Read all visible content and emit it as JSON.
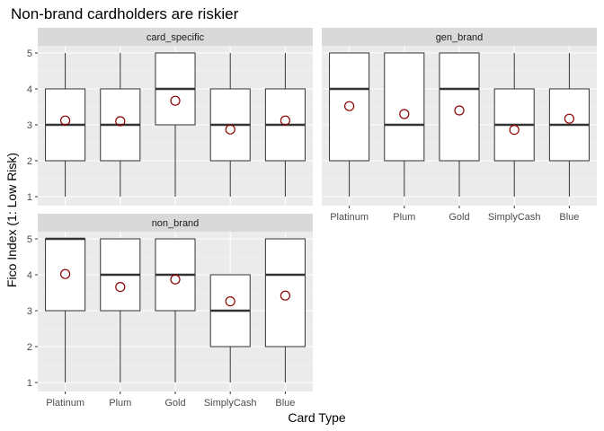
{
  "chart_data": {
    "type": "boxplot",
    "title": "Non-brand cardholders are riskier",
    "xlabel": "Card Type",
    "ylabel": "Fico Index (1: Low Risk)",
    "categories": [
      "Platinum",
      "Plum",
      "Gold",
      "SimplyCash",
      "Blue"
    ],
    "ylim": [
      0.75,
      5.2
    ],
    "yticks": [
      1,
      2,
      3,
      4,
      5
    ],
    "grid": true,
    "colors": {
      "panel_bg": "#ebebeb",
      "strip_bg": "#d9d9d9",
      "grid": "#ffffff",
      "box_fill": "#ffffff",
      "box_line": "#333333",
      "mean_marker": "#8b0000"
    },
    "panels": [
      {
        "strip": "card_specific",
        "boxes": [
          {
            "category": "Platinum",
            "min": 1,
            "q1": 2,
            "median": 3,
            "q3": 4,
            "max": 5,
            "mean": 3.12
          },
          {
            "category": "Plum",
            "min": 1,
            "q1": 2,
            "median": 3,
            "q3": 4,
            "max": 5,
            "mean": 3.1
          },
          {
            "category": "Gold",
            "min": 1,
            "q1": 3,
            "median": 4,
            "q3": 5,
            "max": 5,
            "mean": 3.67
          },
          {
            "category": "SimplyCash",
            "min": 1,
            "q1": 2,
            "median": 3,
            "q3": 4,
            "max": 5,
            "mean": 2.87
          },
          {
            "category": "Blue",
            "min": 1,
            "q1": 2,
            "median": 3,
            "q3": 4,
            "max": 5,
            "mean": 3.12
          }
        ]
      },
      {
        "strip": "gen_brand",
        "boxes": [
          {
            "category": "Platinum",
            "min": 1,
            "q1": 2,
            "median": 4,
            "q3": 5,
            "max": 5,
            "mean": 3.52
          },
          {
            "category": "Plum",
            "min": 1,
            "q1": 2,
            "median": 3,
            "q3": 5,
            "max": 5,
            "mean": 3.3
          },
          {
            "category": "Gold",
            "min": 1,
            "q1": 2,
            "median": 4,
            "q3": 5,
            "max": 5,
            "mean": 3.4
          },
          {
            "category": "SimplyCash",
            "min": 1,
            "q1": 2,
            "median": 3,
            "q3": 4,
            "max": 5,
            "mean": 2.86
          },
          {
            "category": "Blue",
            "min": 1,
            "q1": 2,
            "median": 3,
            "q3": 4,
            "max": 5,
            "mean": 3.17
          }
        ]
      },
      {
        "strip": "non_brand",
        "boxes": [
          {
            "category": "Platinum",
            "min": 1,
            "q1": 3,
            "median": 5,
            "q3": 5,
            "max": 5,
            "mean": 4.02
          },
          {
            "category": "Plum",
            "min": 1,
            "q1": 3,
            "median": 4,
            "q3": 5,
            "max": 5,
            "mean": 3.66
          },
          {
            "category": "Gold",
            "min": 1,
            "q1": 3,
            "median": 4,
            "q3": 5,
            "max": 5,
            "mean": 3.87
          },
          {
            "category": "SimplyCash",
            "min": 1,
            "q1": 2,
            "median": 3,
            "q3": 4,
            "max": 4,
            "mean": 3.26
          },
          {
            "category": "Blue",
            "min": 1,
            "q1": 2,
            "median": 4,
            "q3": 5,
            "max": 5,
            "mean": 3.42
          }
        ]
      }
    ]
  }
}
